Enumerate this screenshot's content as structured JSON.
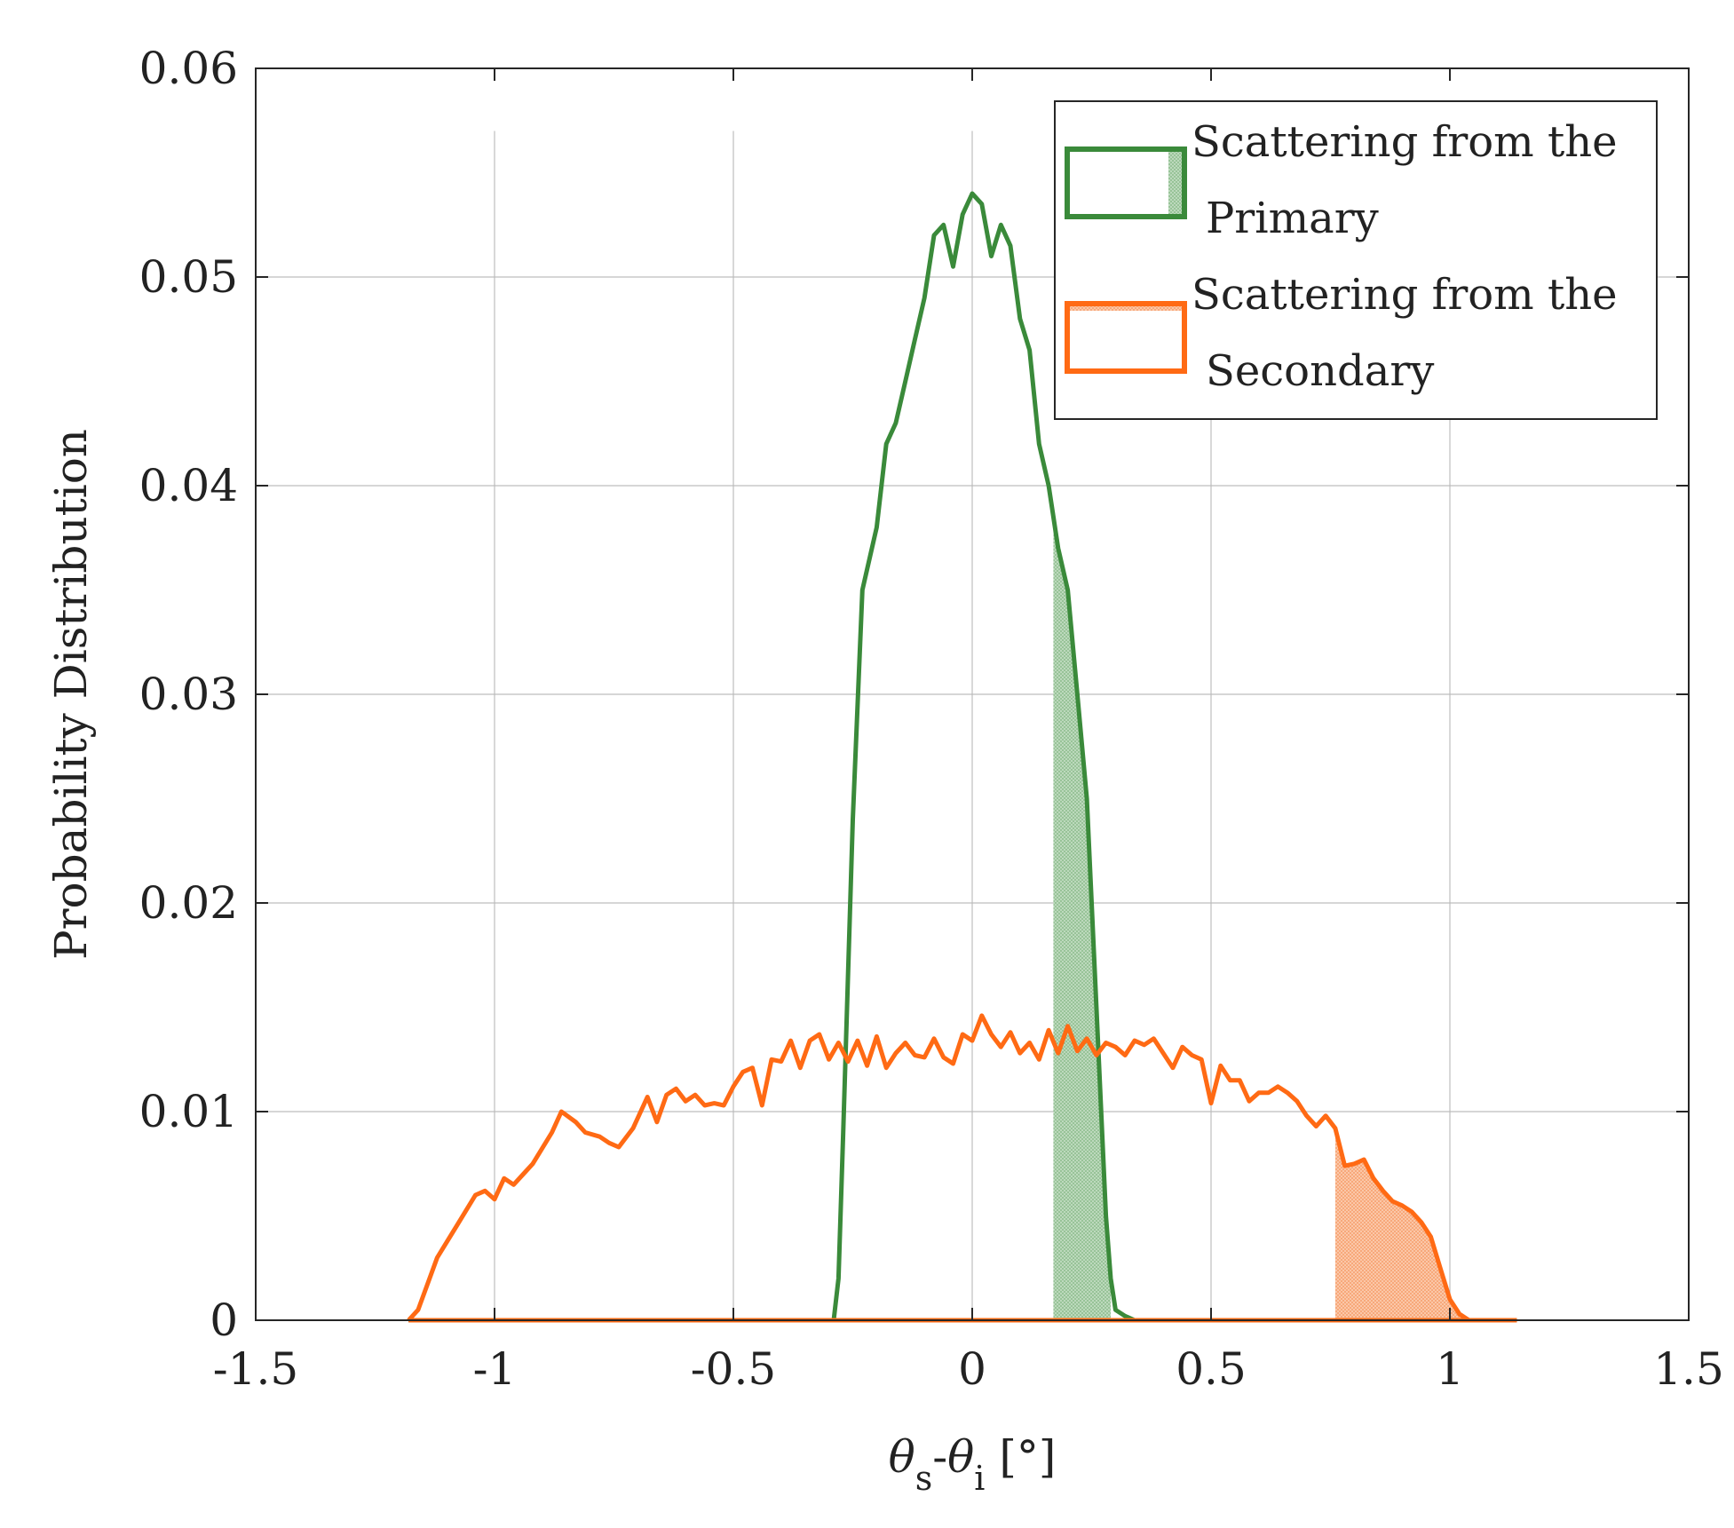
{
  "chart_data": {
    "type": "line",
    "xlabel": {
      "theta": "θ",
      "sub_s": "s",
      "dash": "-",
      "sub_i": "i",
      "unit": " [°]"
    },
    "ylabel": "Probability Distribution",
    "xlim": [
      -1.5,
      1.5
    ],
    "ylim": [
      0,
      0.06
    ],
    "xticks": [
      "-1.5",
      "-1",
      "-0.5",
      "0",
      "0.5",
      "1",
      "1.5"
    ],
    "yticks": [
      "0",
      "0.01",
      "0.02",
      "0.03",
      "0.04",
      "0.05",
      "0.06"
    ],
    "xtick_values": [
      -1.5,
      -1,
      -0.5,
      0,
      0.5,
      1,
      1.5
    ],
    "ytick_values": [
      0,
      0.01,
      0.02,
      0.03,
      0.04,
      0.05,
      0.06
    ],
    "grid": true,
    "legend": {
      "placement": "top-right",
      "entries": [
        {
          "line1": "Scattering from the",
          "line2": "Primary"
        },
        {
          "line1": "Scattering from the",
          "line2": "Secondary"
        }
      ]
    },
    "series": [
      {
        "color": "#3a8a3a",
        "shade_range": [
          0.17,
          0.29
        ],
        "x": [
          -0.35,
          -0.29,
          -0.28,
          -0.27,
          -0.25,
          -0.23,
          -0.2,
          -0.18,
          -0.16,
          -0.14,
          -0.12,
          -0.1,
          -0.08,
          -0.06,
          -0.04,
          -0.02,
          0.0,
          0.02,
          0.04,
          0.06,
          0.08,
          0.1,
          0.12,
          0.14,
          0.16,
          0.18,
          0.2,
          0.22,
          0.24,
          0.26,
          0.28,
          0.29,
          0.3,
          0.32,
          0.34
        ],
        "y": [
          0,
          0,
          0.002,
          0.009,
          0.024,
          0.035,
          0.038,
          0.042,
          0.043,
          0.045,
          0.047,
          0.049,
          0.052,
          0.0525,
          0.0505,
          0.053,
          0.054,
          0.0535,
          0.051,
          0.0525,
          0.0515,
          0.048,
          0.0465,
          0.042,
          0.04,
          0.037,
          0.035,
          0.03,
          0.025,
          0.015,
          0.005,
          0.002,
          0.0005,
          0.0002,
          0
        ]
      },
      {
        "color": "#ff6a14",
        "shade_range": [
          0.76,
          1.13
        ],
        "x": [
          -1.18,
          -1.16,
          -1.12,
          -1.08,
          -1.04,
          -1.02,
          -1.0,
          -0.98,
          -0.96,
          -0.94,
          -0.92,
          -0.88,
          -0.86,
          -0.83,
          -0.81,
          -0.78,
          -0.76,
          -0.74,
          -0.71,
          -0.68,
          -0.66,
          -0.64,
          -0.62,
          -0.6,
          -0.58,
          -0.56,
          -0.54,
          -0.52,
          -0.5,
          -0.48,
          -0.46,
          -0.44,
          -0.42,
          -0.4,
          -0.38,
          -0.36,
          -0.34,
          -0.32,
          -0.3,
          -0.28,
          -0.26,
          -0.24,
          -0.22,
          -0.2,
          -0.18,
          -0.16,
          -0.14,
          -0.12,
          -0.1,
          -0.08,
          -0.06,
          -0.04,
          -0.02,
          0.0,
          0.02,
          0.04,
          0.06,
          0.08,
          0.1,
          0.12,
          0.14,
          0.16,
          0.18,
          0.2,
          0.22,
          0.24,
          0.26,
          0.28,
          0.3,
          0.32,
          0.34,
          0.36,
          0.38,
          0.4,
          0.42,
          0.44,
          0.46,
          0.48,
          0.5,
          0.52,
          0.54,
          0.56,
          0.58,
          0.6,
          0.62,
          0.64,
          0.66,
          0.68,
          0.7,
          0.72,
          0.74,
          0.76,
          0.78,
          0.8,
          0.82,
          0.84,
          0.86,
          0.88,
          0.9,
          0.92,
          0.94,
          0.96,
          0.98,
          1.0,
          1.02,
          1.04,
          1.06,
          1.08,
          1.1,
          1.12,
          1.14
        ],
        "y": [
          0,
          0.0005,
          0.003,
          0.0045,
          0.006,
          0.0062,
          0.0058,
          0.0068,
          0.0065,
          0.007,
          0.0075,
          0.009,
          0.01,
          0.0095,
          0.009,
          0.0088,
          0.0085,
          0.0083,
          0.0092,
          0.0107,
          0.0095,
          0.0108,
          0.0111,
          0.0105,
          0.0108,
          0.0103,
          0.0104,
          0.0103,
          0.0112,
          0.0119,
          0.0121,
          0.0103,
          0.0125,
          0.0124,
          0.0134,
          0.0121,
          0.0134,
          0.0137,
          0.0125,
          0.0133,
          0.0124,
          0.0134,
          0.0122,
          0.0136,
          0.0121,
          0.0128,
          0.0133,
          0.0127,
          0.0126,
          0.0135,
          0.0126,
          0.0123,
          0.0137,
          0.0134,
          0.0146,
          0.0137,
          0.0131,
          0.0138,
          0.0128,
          0.0133,
          0.0125,
          0.0139,
          0.0128,
          0.0141,
          0.0129,
          0.0135,
          0.0127,
          0.0133,
          0.0131,
          0.0127,
          0.0134,
          0.0132,
          0.0135,
          0.0128,
          0.0121,
          0.0131,
          0.0127,
          0.0125,
          0.0104,
          0.0122,
          0.0115,
          0.0115,
          0.0105,
          0.0109,
          0.0109,
          0.0112,
          0.0109,
          0.0105,
          0.0098,
          0.0093,
          0.0098,
          0.0092,
          0.0074,
          0.0075,
          0.0077,
          0.0068,
          0.0062,
          0.0057,
          0.0055,
          0.0052,
          0.0047,
          0.004,
          0.0025,
          0.001,
          0.0003,
          0,
          0,
          0,
          0,
          0,
          0
        ]
      }
    ]
  }
}
